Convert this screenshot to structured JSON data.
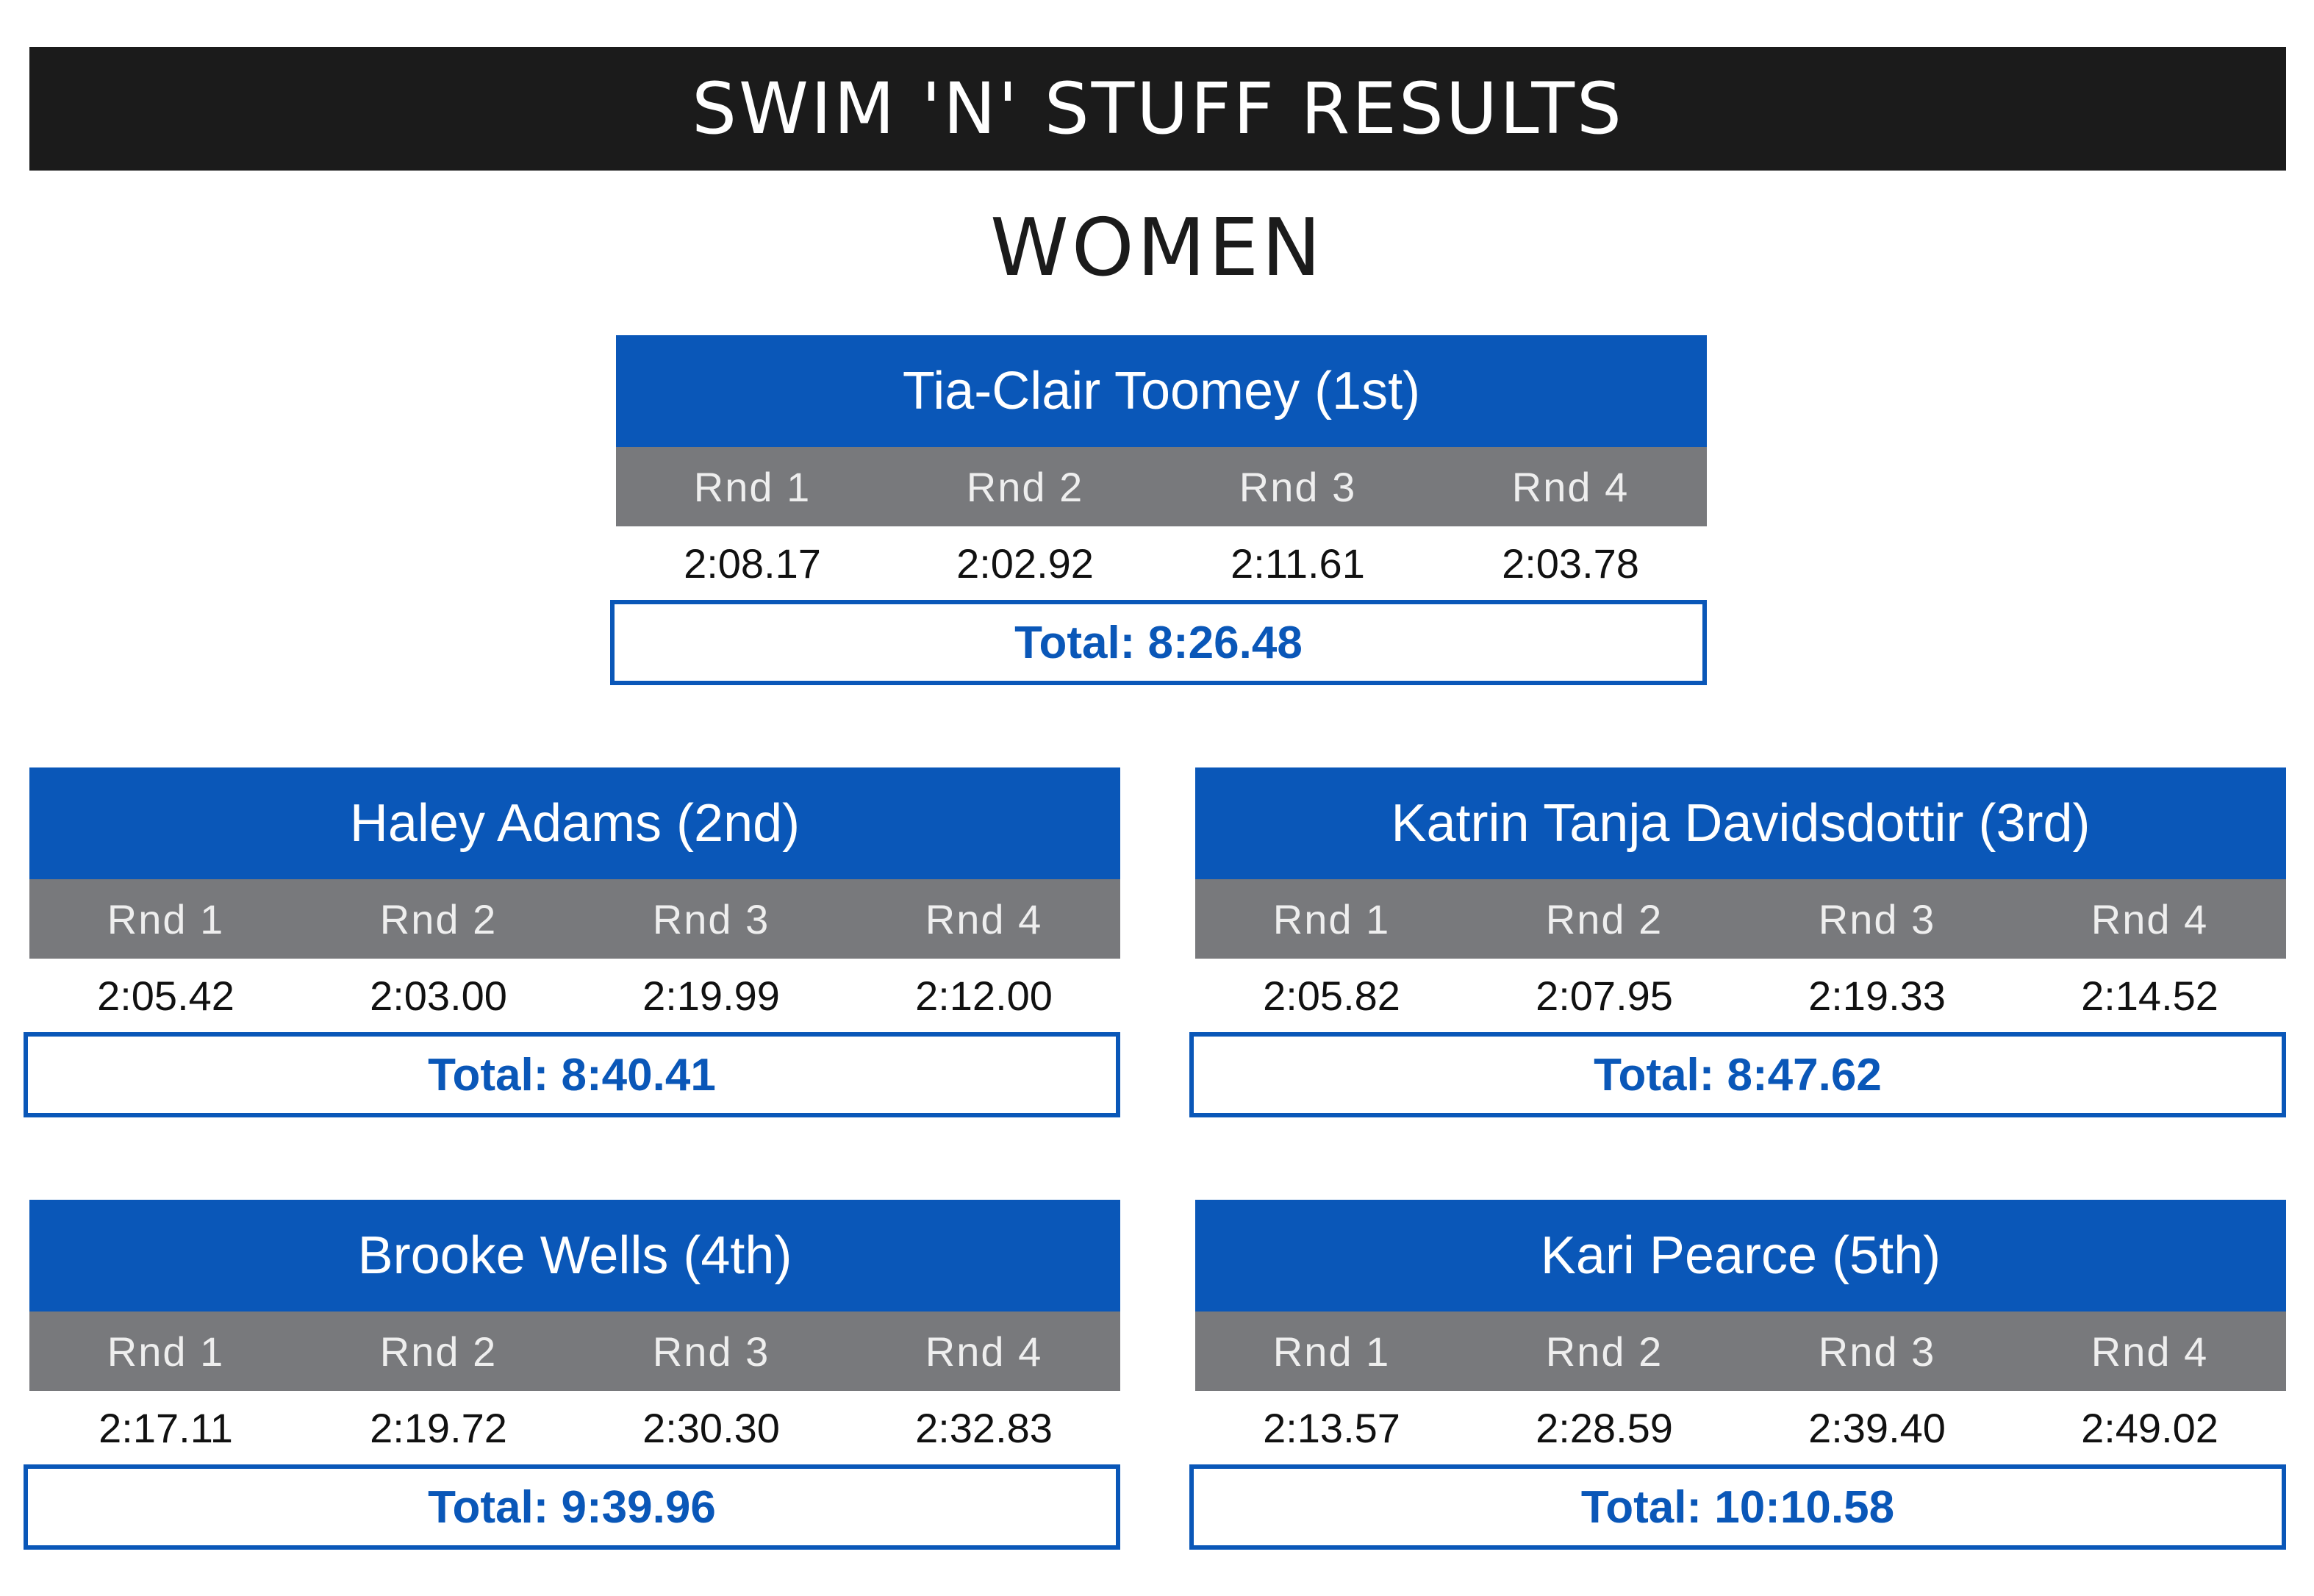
{
  "header": {
    "title": "SWIM 'N' STUFF RESULTS",
    "section": "WOMEN"
  },
  "athletes": [
    {
      "name": "Tia-Clair Toomey (1st)",
      "rounds": [
        "Rnd 1",
        "Rnd 2",
        "Rnd 3",
        "Rnd 4"
      ],
      "times": [
        "2:08.17",
        "2:02.92",
        "2:11.61",
        "2:03.78"
      ],
      "total": "Total: 8:26.48"
    },
    {
      "name": "Haley Adams (2nd)",
      "rounds": [
        "Rnd 1",
        "Rnd 2",
        "Rnd 3",
        "Rnd 4"
      ],
      "times": [
        "2:05.42",
        "2:03.00",
        "2:19.99",
        "2:12.00"
      ],
      "total": "Total: 8:40.41"
    },
    {
      "name": "Katrin Tanja Davidsdottir (3rd)",
      "rounds": [
        "Rnd 1",
        "Rnd 2",
        "Rnd 3",
        "Rnd 4"
      ],
      "times": [
        "2:05.82",
        "2:07.95",
        "2:19.33",
        "2:14.52"
      ],
      "total": "Total: 8:47.62"
    },
    {
      "name": "Brooke Wells (4th)",
      "rounds": [
        "Rnd 1",
        "Rnd 2",
        "Rnd 3",
        "Rnd 4"
      ],
      "times": [
        "2:17.11",
        "2:19.72",
        "2:30.30",
        "2:32.83"
      ],
      "total": "Total: 9:39.96"
    },
    {
      "name": "Kari Pearce (5th)",
      "rounds": [
        "Rnd 1",
        "Rnd 2",
        "Rnd 3",
        "Rnd 4"
      ],
      "times": [
        "2:13.57",
        "2:28.59",
        "2:39.40",
        "2:49.02"
      ],
      "total": "Total: 10:10.58"
    }
  ],
  "colors": {
    "title_bar": "#1b1b1b",
    "card_header": "#0a57b8",
    "round_row": "#78797c",
    "total_text": "#0a57b8"
  }
}
